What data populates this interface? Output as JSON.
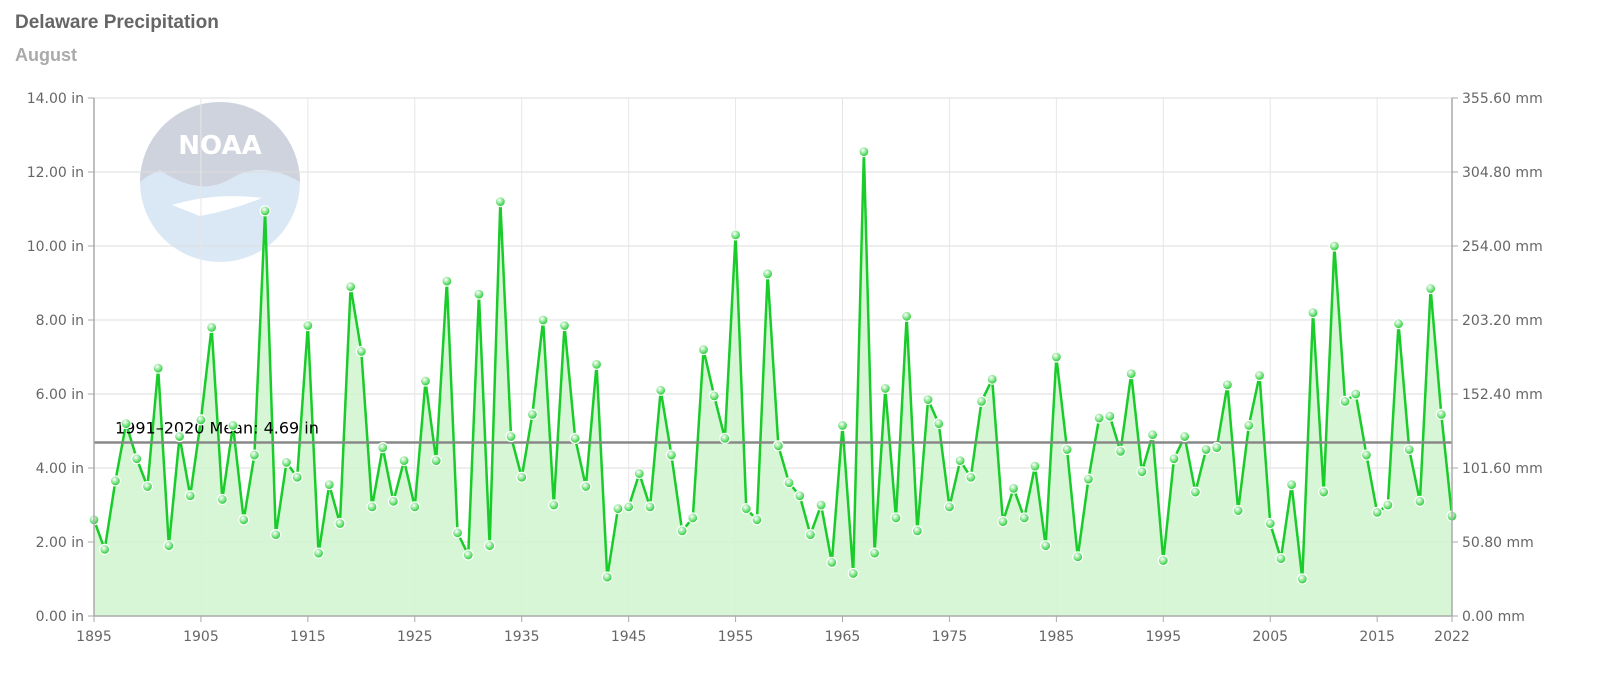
{
  "title": "Delaware Precipitation",
  "subtitle": "August",
  "colors": {
    "series": "#19cc2a",
    "fill": "#d2f5d0",
    "mean": "#888888",
    "grid": "#e6e6e6",
    "axis": "#aaaaaa"
  },
  "logo": {
    "text": "NOAA",
    "icon": "noaa-logo"
  },
  "chart_data": {
    "type": "line",
    "x_ticks": [
      "1895",
      "1905",
      "1915",
      "1925",
      "1935",
      "1945",
      "1955",
      "1965",
      "1975",
      "1985",
      "1995",
      "2005",
      "2015",
      "2022"
    ],
    "y_ticks_left": [
      "0.00 in",
      "2.00 in",
      "4.00 in",
      "6.00 in",
      "8.00 in",
      "10.00 in",
      "12.00 in",
      "14.00 in"
    ],
    "y_ticks_right": [
      "0.00 mm",
      "50.80 mm",
      "101.60 mm",
      "152.40 mm",
      "203.20 mm",
      "254.00 mm",
      "304.80 mm",
      "355.60 mm"
    ],
    "ylim": [
      0,
      14
    ],
    "xlim": [
      1895,
      2022
    ],
    "mean": {
      "label": "1991–2020 Mean: 4.69 in",
      "value": 4.69
    },
    "series": [
      {
        "x_start": 1895,
        "values": [
          2.6,
          1.8,
          3.65,
          5.2,
          4.25,
          3.5,
          6.7,
          1.9,
          4.85,
          3.25,
          5.3,
          7.8,
          3.15,
          5.15,
          2.6,
          4.35,
          10.95,
          2.2,
          4.15,
          3.75,
          7.85,
          1.7,
          3.55,
          2.5,
          8.9,
          7.15,
          2.95,
          4.55,
          3.1,
          4.2,
          2.95,
          6.35,
          4.2,
          9.05,
          2.25,
          1.65,
          8.7,
          1.9,
          11.2,
          4.85,
          3.75,
          5.45,
          8.0,
          3.0,
          7.85,
          4.8,
          3.5,
          6.8,
          1.05,
          2.9,
          2.95,
          3.85,
          2.95,
          6.1,
          4.35,
          2.3,
          2.65,
          7.2,
          5.95,
          4.8,
          10.3,
          2.9,
          2.6,
          9.25,
          4.6,
          3.6,
          3.25,
          2.2,
          3.0,
          1.45,
          5.15,
          1.15,
          12.55,
          1.7,
          6.15,
          2.65,
          8.1,
          2.3,
          5.85,
          5.2,
          2.95,
          4.2,
          3.75,
          5.8,
          6.4,
          2.55,
          3.45,
          2.65,
          4.05,
          1.9,
          7.0,
          4.5,
          1.6,
          3.7,
          5.35,
          5.4,
          4.45,
          6.55,
          3.9,
          4.9,
          1.5,
          4.25,
          4.85,
          3.35,
          4.5,
          4.55,
          6.25,
          2.85,
          5.15,
          6.5,
          2.5,
          1.55,
          3.55,
          1.0,
          8.2,
          3.35,
          10.0,
          5.8,
          6.0,
          4.35,
          2.8,
          3.0,
          7.9,
          4.5,
          3.1,
          8.85,
          5.45,
          2.7
        ]
      }
    ],
    "grid": true,
    "legend": "none"
  }
}
